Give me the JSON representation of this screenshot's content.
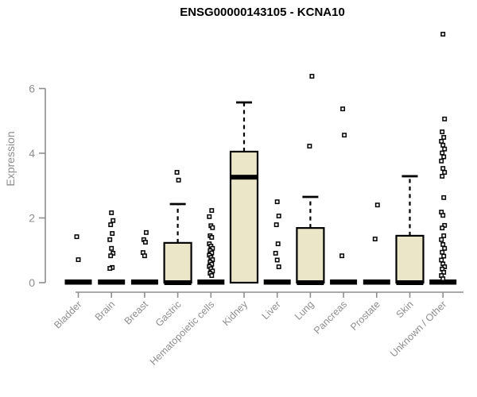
{
  "style": {
    "background": "#ffffff",
    "box_fill": "#ece6c9",
    "box_stroke": "#000000",
    "median_color": "#000000",
    "whisker_color": "#000000",
    "outlier_color": "#000000",
    "axis_color": "#8e8e8e",
    "tick_text_color": "#8e8e8e",
    "title_color": "#000000"
  },
  "chart_data": {
    "type": "boxplot",
    "title": "ENSG00000143105 - KCNA10",
    "ylabel": "Expression",
    "xlabel": "",
    "yticks": [
      0,
      2,
      4,
      6
    ],
    "ylim": [
      0,
      7.8
    ],
    "grid": false,
    "legend": false,
    "x_label_rotation_deg": -45,
    "categories": [
      "Bladder",
      "Brain",
      "Breast",
      "Gastric",
      "Hematopoietic cells",
      "Kidney",
      "Liver",
      "Lung",
      "Pancreas",
      "Prostate",
      "Skin",
      "Unknown / Other"
    ],
    "series": [
      {
        "category": "Bladder",
        "has_box": false,
        "median": 0,
        "outliers": [
          1.42,
          0.71
        ]
      },
      {
        "category": "Brain",
        "has_box": false,
        "median": 0,
        "outliers": [
          2.16,
          1.92,
          1.79,
          1.52,
          1.33,
          1.06,
          0.91,
          0.83,
          0.47,
          0.44
        ]
      },
      {
        "category": "Breast",
        "has_box": false,
        "median": 0,
        "outliers": [
          1.55,
          1.33,
          1.25,
          0.93,
          0.83
        ]
      },
      {
        "category": "Gastric",
        "has_box": true,
        "q1": 0,
        "median": 0,
        "q3": 1.23,
        "whisker_low": 0,
        "whisker_high": 2.43,
        "outliers": [
          3.41,
          3.17
        ]
      },
      {
        "category": "Hematopoietic cells",
        "has_box": false,
        "median": 0,
        "outliers": [
          2.23,
          2.04,
          1.76,
          1.7,
          1.45,
          1.4,
          1.2,
          1.13,
          1.06,
          0.99,
          0.92,
          0.85,
          0.78,
          0.71,
          0.64,
          0.57,
          0.5,
          0.43,
          0.36,
          0.29,
          0.22
        ]
      },
      {
        "category": "Kidney",
        "has_box": true,
        "q1": 0,
        "median": 3.26,
        "q3": 4.05,
        "whisker_low": 0,
        "whisker_high": 5.57,
        "outliers": []
      },
      {
        "category": "Liver",
        "has_box": false,
        "median": 0,
        "outliers": [
          2.5,
          2.06,
          1.79,
          1.2,
          0.91,
          0.7,
          0.49
        ]
      },
      {
        "category": "Lung",
        "has_box": true,
        "q1": 0,
        "median": 0,
        "q3": 1.69,
        "whisker_low": 0,
        "whisker_high": 2.65,
        "outliers": [
          6.38,
          4.22
        ]
      },
      {
        "category": "Pancreas",
        "has_box": false,
        "median": 0,
        "outliers": [
          5.37,
          4.56,
          0.83
        ]
      },
      {
        "category": "Prostate",
        "has_box": false,
        "median": 0,
        "outliers": [
          2.4,
          1.35
        ]
      },
      {
        "category": "Skin",
        "has_box": true,
        "q1": 0,
        "median": 0,
        "q3": 1.45,
        "whisker_low": 0,
        "whisker_high": 3.29,
        "outliers": []
      },
      {
        "category": "Unknown / Other",
        "has_box": false,
        "median": 0,
        "outliers": [
          7.68,
          5.06,
          4.66,
          4.49,
          4.37,
          4.25,
          4.13,
          4.01,
          3.89,
          3.76,
          3.53,
          3.41,
          3.29,
          2.63,
          2.18,
          2.08,
          1.77,
          1.69,
          1.45,
          1.33,
          1.18,
          1.06,
          0.94,
          0.82,
          0.7,
          0.58,
          0.49,
          0.42,
          0.32,
          0.22,
          0.12
        ]
      }
    ]
  }
}
